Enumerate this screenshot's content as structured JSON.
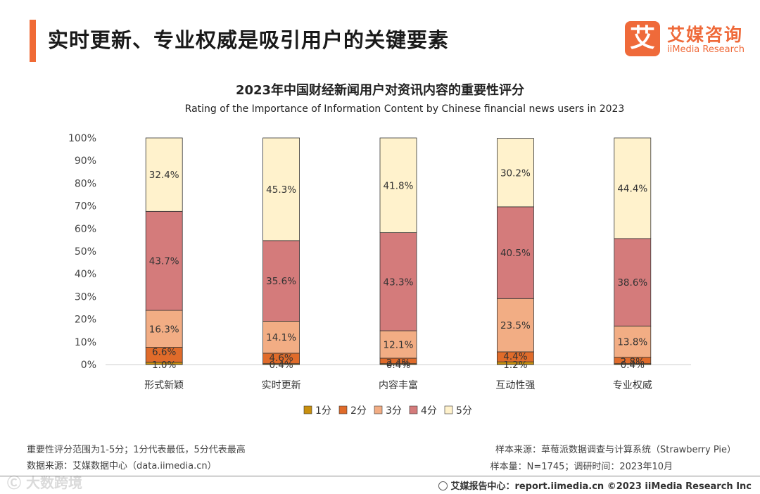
{
  "page_title": "实时更新、专业权威是吸引用户的关键要素",
  "logo": {
    "mark": "艾",
    "cn": "艾媒咨询",
    "en": "iiMedia Research"
  },
  "chart_data": {
    "type": "bar",
    "stacked": true,
    "title": "2023年中国财经新闻用户对资讯内容的重要性评分",
    "subtitle": "Rating of the Importance of Information Content by Chinese financial news users in 2023",
    "categories": [
      "形式新颖",
      "实时更新",
      "内容丰富",
      "互动性强",
      "专业权威"
    ],
    "series": [
      {
        "name": "1分",
        "color": "#c9900e",
        "values": [
          1.0,
          0.4,
          0.4,
          1.2,
          0.4
        ],
        "labels": [
          "1.0%",
          "0.4%",
          "0.4%",
          "1.2%",
          "0.4%"
        ]
      },
      {
        "name": "2分",
        "color": "#e06b2a",
        "values": [
          6.6,
          4.6,
          2.4,
          4.4,
          2.8
        ],
        "labels": [
          "6.6%",
          "4.6%",
          "2.4%",
          "4.4%",
          "2.8%"
        ]
      },
      {
        "name": "3分",
        "color": "#f2ad84",
        "values": [
          16.3,
          14.1,
          12.1,
          23.5,
          13.8
        ],
        "labels": [
          "16.3%",
          "14.1%",
          "12.1%",
          "23.5%",
          "13.8%"
        ]
      },
      {
        "name": "4分",
        "color": "#d47b7b",
        "values": [
          43.7,
          35.6,
          43.3,
          40.5,
          38.6
        ],
        "labels": [
          "43.7%",
          "35.6%",
          "43.3%",
          "40.5%",
          "38.6%"
        ]
      },
      {
        "name": "5分",
        "color": "#fff2cc",
        "values": [
          32.4,
          45.3,
          41.8,
          30.2,
          44.4
        ],
        "labels": [
          "32.4%",
          "45.3%",
          "41.8%",
          "30.2%",
          "44.4%"
        ]
      }
    ],
    "yticks": [
      "0%",
      "10%",
      "20%",
      "30%",
      "40%",
      "50%",
      "60%",
      "70%",
      "80%",
      "90%",
      "100%"
    ],
    "ylim": [
      0,
      100
    ],
    "legend": "bottom"
  },
  "notes": {
    "left1": "重要性评分范围为1-5分；1分代表最低，5分代表最高",
    "left2": "数据来源：艾媒数据中心（data.iimedia.cn）",
    "right1": "样本来源：草莓派数据调查与计算系统（Strawberry Pie）",
    "right2": "样本量：N=1745；调研时间：2023年10月"
  },
  "footer": "艾媒报告中心：report.iimedia.cn  ©2023  iiMedia Research  Inc",
  "watermark": "Ⓒ 大数跨境"
}
